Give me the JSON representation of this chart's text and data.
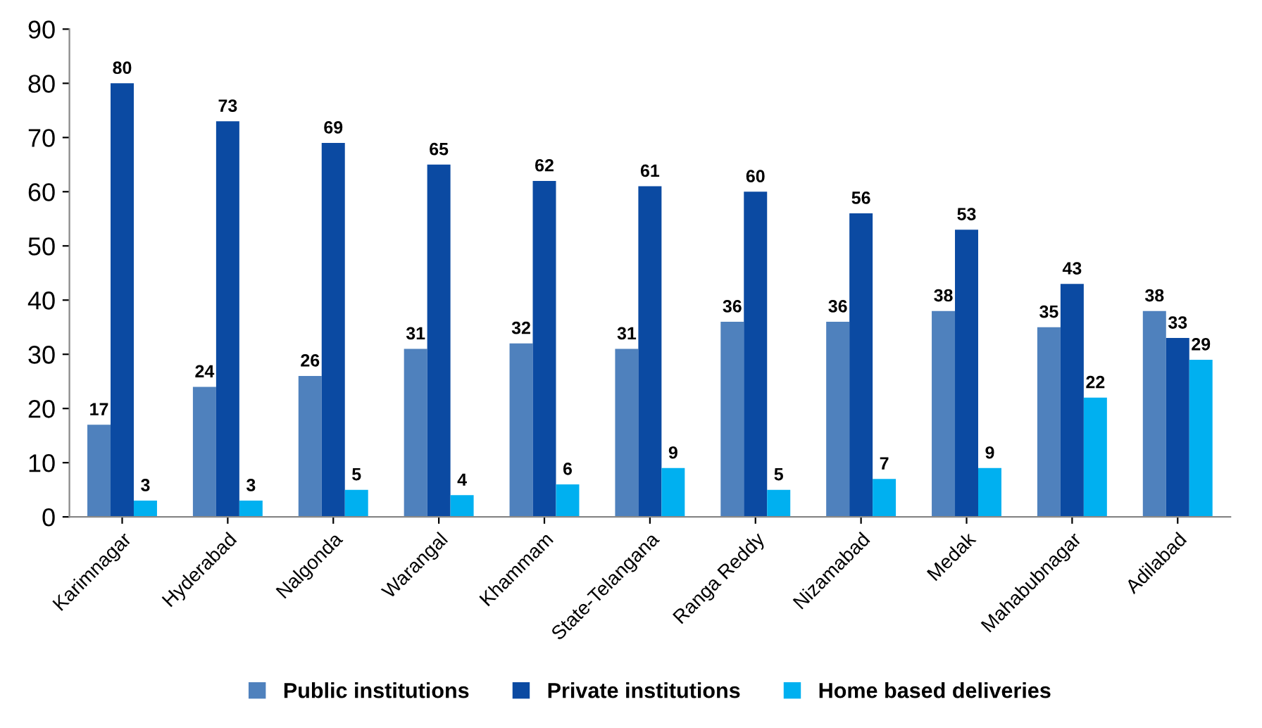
{
  "chart_data": {
    "type": "bar",
    "categories": [
      "Karimnagar",
      "Hyderabad",
      "Nalgonda",
      "Warangal",
      "Khammam",
      "State-Telangana",
      "Ranga Reddy",
      "Nizamabad",
      "Medak",
      "Mahabubnagar",
      "Adilabad"
    ],
    "series": [
      {
        "name": "Public institutions",
        "color": "#4f81bd",
        "values": [
          17,
          24,
          26,
          31,
          32,
          31,
          36,
          36,
          38,
          35,
          38
        ]
      },
      {
        "name": "Private institutions",
        "color": "#0b4aa2",
        "values": [
          80,
          73,
          69,
          65,
          62,
          61,
          60,
          56,
          53,
          43,
          33
        ]
      },
      {
        "name": "Home based deliveries",
        "color": "#00b0f0",
        "values": [
          3,
          3,
          5,
          4,
          6,
          9,
          5,
          7,
          9,
          22,
          29
        ]
      }
    ],
    "ylim": [
      0,
      90
    ],
    "yticks": [
      0,
      10,
      20,
      30,
      40,
      50,
      60,
      70,
      80,
      90
    ],
    "data_labels": true,
    "grid": false,
    "legend": "bottom"
  }
}
